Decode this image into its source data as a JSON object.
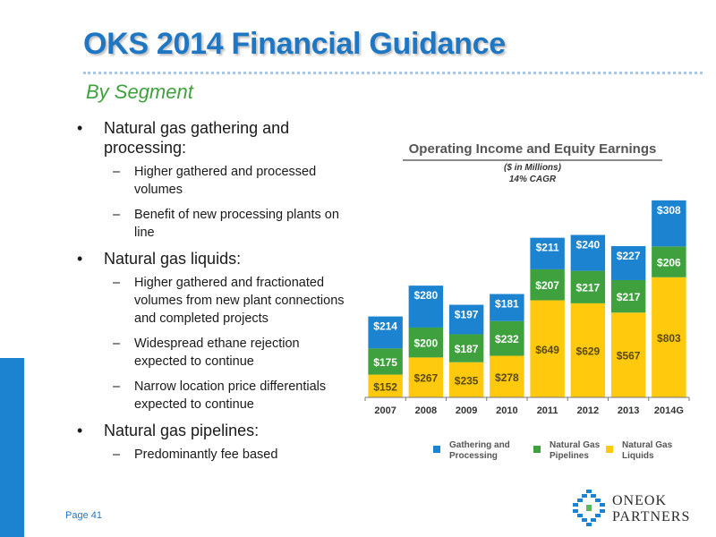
{
  "title": "OKS 2014 Financial Guidance",
  "subtitle": "By Segment",
  "bullets": [
    {
      "text": "Natural gas gathering and processing:",
      "subs": [
        "Higher gathered and processed volumes",
        "Benefit of new processing plants on line"
      ]
    },
    {
      "text": "Natural gas liquids:",
      "subs": [
        "Higher gathered and fractionated volumes from new plant connections and completed projects",
        "Widespread ethane rejection expected to continue",
        "Narrow location price differentials expected to continue"
      ]
    },
    {
      "text": "Natural gas pipelines:",
      "subs": [
        "Predominantly fee based"
      ]
    }
  ],
  "page": "Page 41",
  "logo": {
    "line1": "ONEOK",
    "line2": "PARTNERS"
  },
  "colors": {
    "title": "#1f77c4",
    "subtitle": "#3ea13e",
    "side_bar": "#1b83cf",
    "gathering": "#1b83cf",
    "pipelines": "#3ea13e",
    "liquids": "#ffc90e"
  },
  "chart_data": {
    "type": "bar",
    "stacked": true,
    "title": "Operating Income and Equity Earnings",
    "subtitle": "($ in Millions)",
    "note": "14% CAGR",
    "categories": [
      "2007",
      "2008",
      "2009",
      "2010",
      "2011",
      "2012",
      "2013",
      "2014G"
    ],
    "series": [
      {
        "name": "Natural Gas Liquids",
        "color": "#ffc90e",
        "values": [
          152,
          267,
          235,
          278,
          649,
          629,
          567,
          803
        ]
      },
      {
        "name": "Natural Gas Pipelines",
        "color": "#3ea13e",
        "values": [
          175,
          200,
          187,
          232,
          207,
          217,
          217,
          206
        ]
      },
      {
        "name": "Gathering and Processing",
        "color": "#1b83cf",
        "values": [
          214,
          280,
          197,
          181,
          211,
          240,
          227,
          308
        ]
      }
    ],
    "ylim": [
      0,
      1400
    ],
    "legend_position": "bottom",
    "legend": [
      {
        "line1": "Gathering and",
        "line2": "Processing",
        "color": "#1b83cf"
      },
      {
        "line1": "Natural Gas",
        "line2": "Pipelines",
        "color": "#3ea13e"
      },
      {
        "line1": "Natural Gas",
        "line2": "Liquids",
        "color": "#ffc90e"
      }
    ]
  }
}
